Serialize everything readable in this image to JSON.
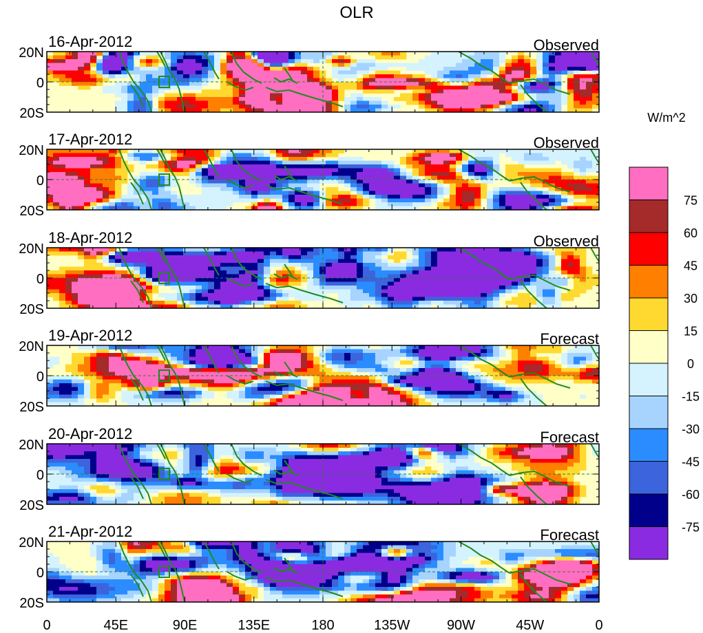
{
  "chart_data": {
    "type": "heatmap",
    "title": "OLR",
    "units": "W/m^2",
    "panels": [
      {
        "date": "16-Apr-2012",
        "label": "Observed"
      },
      {
        "date": "17-Apr-2012",
        "label": "Observed"
      },
      {
        "date": "18-Apr-2012",
        "label": "Observed"
      },
      {
        "date": "19-Apr-2012",
        "label": "Forecast"
      },
      {
        "date": "20-Apr-2012",
        "label": "Forecast"
      },
      {
        "date": "21-Apr-2012",
        "label": "Forecast"
      }
    ],
    "y_ticks": [
      "20N",
      "0",
      "20S"
    ],
    "x_ticks": [
      "0",
      "45E",
      "90E",
      "135E",
      "180",
      "135W",
      "90W",
      "45W",
      "0"
    ],
    "xlim": [
      0,
      360
    ],
    "ylim": [
      -20,
      20
    ],
    "colorbar": {
      "labels": [
        "75",
        "60",
        "45",
        "30",
        "15",
        "0",
        "-15",
        "-30",
        "-45",
        "-60",
        "-75"
      ],
      "levels": [
        90,
        75,
        60,
        45,
        30,
        15,
        0,
        -15,
        -30,
        -45,
        -60,
        -75,
        -90
      ],
      "colors": [
        "#ff6ec0",
        "#a52a2a",
        "#ff0000",
        "#ff7f00",
        "#ffd92f",
        "#ffffc8",
        "#d4f3ff",
        "#a6d4ff",
        "#2b8cff",
        "#3c64dc",
        "#00008b",
        "#8a2be2"
      ]
    }
  }
}
